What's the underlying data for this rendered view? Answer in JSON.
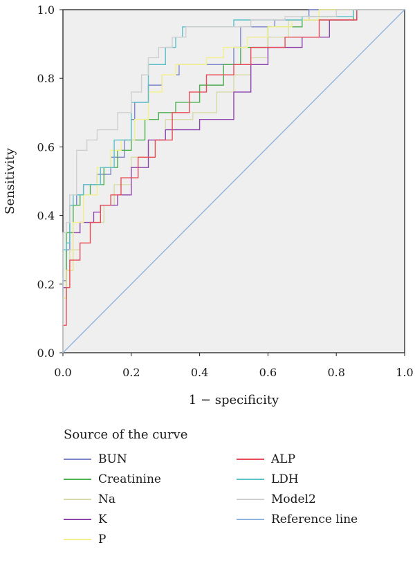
{
  "chart_data": {
    "type": "line",
    "xlabel": "1 − specificity",
    "ylabel": "Sensitivity",
    "xlim": [
      0,
      1
    ],
    "ylim": [
      0,
      1
    ],
    "xticks": [
      "0.0",
      "0.2",
      "0.4",
      "0.6",
      "0.8",
      "1.0"
    ],
    "yticks": [
      "0.0",
      "0.2",
      "0.4",
      "0.6",
      "0.8",
      "1.0"
    ],
    "grid": false,
    "legend_title": "Source of the curve",
    "legend_position": "bottom",
    "series": [
      {
        "name": "BUN",
        "color": "#7b86c9",
        "x": [
          0,
          0.01,
          0.02,
          0.04,
          0.06,
          0.1,
          0.14,
          0.18,
          0.2,
          0.21,
          0.25,
          0.29,
          0.34,
          0.5,
          0.52,
          0.62,
          0.72,
          1.0
        ],
        "y": [
          0,
          0.21,
          0.3,
          0.43,
          0.46,
          0.49,
          0.52,
          0.57,
          0.62,
          0.68,
          0.73,
          0.78,
          0.81,
          0.84,
          0.89,
          0.95,
          0.97,
          1.0
        ]
      },
      {
        "name": "Creatinine",
        "color": "#4caf50",
        "x": [
          0,
          0.01,
          0.03,
          0.05,
          0.08,
          0.12,
          0.16,
          0.2,
          0.24,
          0.28,
          0.33,
          0.4,
          0.47,
          0.52,
          0.6,
          0.7,
          0.85,
          1.0
        ],
        "y": [
          0,
          0.16,
          0.35,
          0.43,
          0.46,
          0.49,
          0.54,
          0.59,
          0.62,
          0.68,
          0.7,
          0.73,
          0.78,
          0.84,
          0.89,
          0.95,
          0.97,
          1.0
        ]
      },
      {
        "name": "Na",
        "color": "#d8dba8",
        "x": [
          0,
          0.02,
          0.05,
          0.08,
          0.12,
          0.15,
          0.2,
          0.25,
          0.3,
          0.38,
          0.45,
          0.5,
          0.55,
          0.6,
          0.66,
          0.72,
          0.8,
          1.0
        ],
        "y": [
          0,
          0.19,
          0.3,
          0.32,
          0.38,
          0.43,
          0.49,
          0.57,
          0.62,
          0.68,
          0.7,
          0.76,
          0.81,
          0.86,
          0.92,
          0.97,
          0.98,
          1.0
        ]
      },
      {
        "name": "K",
        "color": "#8e44ad",
        "x": [
          0,
          0.01,
          0.03,
          0.05,
          0.09,
          0.11,
          0.16,
          0.2,
          0.25,
          0.3,
          0.4,
          0.5,
          0.55,
          0.6,
          0.7,
          0.78,
          0.86,
          1.0
        ],
        "y": [
          0,
          0.19,
          0.24,
          0.35,
          0.38,
          0.41,
          0.43,
          0.46,
          0.54,
          0.62,
          0.65,
          0.68,
          0.76,
          0.84,
          0.89,
          0.92,
          0.97,
          1.0
        ]
      },
      {
        "name": "P",
        "color": "#f3f08a",
        "x": [
          0,
          0.01,
          0.03,
          0.06,
          0.1,
          0.14,
          0.17,
          0.21,
          0.25,
          0.29,
          0.33,
          0.42,
          0.47,
          0.54,
          0.6,
          0.67,
          0.75,
          1.0
        ],
        "y": [
          0,
          0.16,
          0.24,
          0.38,
          0.46,
          0.54,
          0.59,
          0.62,
          0.68,
          0.76,
          0.81,
          0.84,
          0.86,
          0.89,
          0.92,
          0.95,
          0.97,
          1.0
        ]
      },
      {
        "name": "ALP",
        "color": "#e94b56",
        "x": [
          0,
          0.01,
          0.02,
          0.05,
          0.08,
          0.11,
          0.14,
          0.17,
          0.22,
          0.27,
          0.32,
          0.37,
          0.42,
          0.5,
          0.55,
          0.65,
          0.75,
          0.86,
          1.0
        ],
        "y": [
          0,
          0.08,
          0.19,
          0.27,
          0.32,
          0.38,
          0.43,
          0.46,
          0.51,
          0.57,
          0.62,
          0.7,
          0.76,
          0.81,
          0.84,
          0.89,
          0.92,
          0.97,
          1.0
        ]
      },
      {
        "name": "LDH",
        "color": "#5bc0c8",
        "x": [
          0,
          0.01,
          0.02,
          0.03,
          0.06,
          0.11,
          0.15,
          0.2,
          0.25,
          0.3,
          0.33,
          0.35,
          0.5,
          0.6,
          0.7,
          0.85,
          1.0
        ],
        "y": [
          0,
          0.3,
          0.32,
          0.43,
          0.46,
          0.49,
          0.54,
          0.62,
          0.73,
          0.84,
          0.89,
          0.92,
          0.95,
          0.97,
          0.97,
          0.98,
          1.0
        ]
      },
      {
        "name": "Model2",
        "color": "#cfcfcf",
        "x": [
          0,
          0.01,
          0.02,
          0.04,
          0.07,
          0.1,
          0.12,
          0.16,
          0.2,
          0.23,
          0.25,
          0.28,
          0.32,
          0.36,
          0.45,
          0.55,
          0.65,
          0.8,
          1.0
        ],
        "y": [
          0,
          0.35,
          0.38,
          0.46,
          0.59,
          0.62,
          0.65,
          0.65,
          0.7,
          0.76,
          0.81,
          0.86,
          0.89,
          0.92,
          0.95,
          0.95,
          0.97,
          0.98,
          1.0
        ]
      },
      {
        "name": "Reference line",
        "color": "#8fb4df",
        "x": [
          0,
          1
        ],
        "y": [
          0,
          1
        ]
      }
    ]
  }
}
